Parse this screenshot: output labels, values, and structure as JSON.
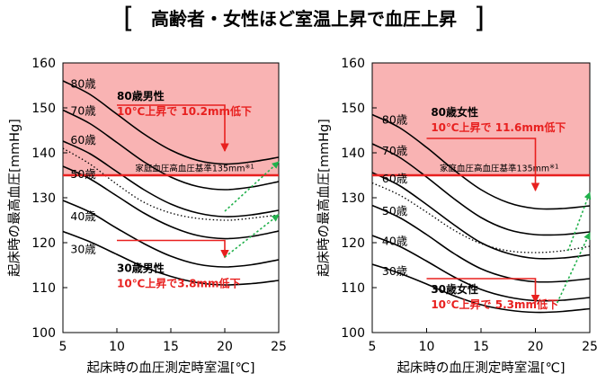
{
  "figure": {
    "bracket_left": "[",
    "title": "高齢者・女性ほど室温上昇で血圧上昇",
    "bracket_right": "]"
  },
  "chart_data": [
    {
      "type": "line",
      "xlabel": "起床時の血圧測定時室温[℃]",
      "ylabel": "起床時の最高血圧[mmHg]",
      "xlim": [
        5,
        25
      ],
      "ylim": [
        100,
        160
      ],
      "x_ticks": [
        "5",
        "10",
        "15",
        "20",
        "25"
      ],
      "y_ticks": [
        "100",
        "110",
        "120",
        "130",
        "140",
        "150",
        "160"
      ],
      "grid": false,
      "shaded_region": {
        "y_from": 135,
        "y_to": 160,
        "color": "#f9b3b3"
      },
      "threshold": {
        "y": 135,
        "label": "家庭血圧高血圧基準135mm",
        "note": "※1",
        "color": "#e8201f"
      },
      "series": [
        {
          "name": "80歳",
          "x": [
            5,
            7.5,
            10,
            12.5,
            15,
            17.5,
            20,
            22.5,
            25
          ],
          "values": [
            156,
            153,
            148.6,
            144.2,
            140.6,
            138.3,
            137.5,
            138,
            139
          ]
        },
        {
          "name": "70歳",
          "x": [
            5,
            7.5,
            10,
            12.5,
            15,
            17.5,
            20,
            22.5,
            25
          ],
          "values": [
            149.5,
            146.5,
            142.3,
            138,
            134.6,
            132.5,
            131.8,
            132.4,
            133.6
          ]
        },
        {
          "name": "60歳",
          "x": [
            5,
            7.5,
            10,
            12.5,
            15,
            17.5,
            20,
            22.5,
            25
          ],
          "values": [
            142.6,
            139.8,
            135.8,
            131.8,
            128.6,
            126.6,
            125.8,
            126.2,
            127.2
          ]
        },
        {
          "name": "50歳",
          "x": [
            5,
            7.5,
            10,
            12.5,
            15,
            17.5,
            20,
            22.5,
            25
          ],
          "values": [
            137,
            134.2,
            130.4,
            126.6,
            123.6,
            121.6,
            120.9,
            121.4,
            122.6
          ]
        },
        {
          "name": "40歳",
          "x": [
            5,
            7.5,
            10,
            12.5,
            15,
            17.5,
            20,
            22.5,
            25
          ],
          "values": [
            129.4,
            126.8,
            123.2,
            119.8,
            117,
            115.2,
            114.6,
            115.1,
            116.2
          ]
        },
        {
          "name": "30歳",
          "x": [
            5,
            7.5,
            10,
            12.5,
            15,
            17.5,
            20,
            22.5,
            25
          ],
          "values": [
            122.5,
            120.2,
            117.4,
            114.6,
            112.5,
            111.1,
            110.6,
            110.9,
            111.6
          ]
        },
        {
          "name": "",
          "style": "dotted",
          "x": [
            5,
            7.5,
            10,
            12.5,
            15,
            17.5,
            20,
            21.5,
            23,
            25
          ],
          "values": [
            141,
            137.5,
            133,
            129,
            126.6,
            125.4,
            125,
            125.2,
            125.6,
            126.2
          ]
        }
      ],
      "age_labels": [
        {
          "text": "80歳",
          "x": 5.7,
          "y": 155.3
        },
        {
          "text": "70歳",
          "x": 5.7,
          "y": 149.3
        },
        {
          "text": "60歳",
          "x": 5.7,
          "y": 142.8
        },
        {
          "text": "50歳",
          "x": 5.7,
          "y": 135.2
        },
        {
          "text": "40歳",
          "x": 5.7,
          "y": 125.8
        },
        {
          "text": "30歳",
          "x": 5.7,
          "y": 118.5
        }
      ],
      "annotations": [
        {
          "group": "80歳男性",
          "label": "80歳男性",
          "value_text": "10℃上昇で 10.2mm低下",
          "x": 10,
          "y": 151.8
        },
        {
          "group": "30歳男性",
          "label": "30歳男性",
          "value_text": "10℃上昇で3.8mm低下",
          "x": 10,
          "y": 113.5
        }
      ],
      "drops": [
        {
          "group": "80歳男性",
          "x_from": 10,
          "x_to": 20,
          "y_from": 150.6,
          "y_to": 140.4
        },
        {
          "group": "30歳男性",
          "x_from": 10,
          "x_to": 20,
          "y_from": 120.5,
          "y_to": 116.7
        }
      ],
      "rises": [
        {
          "points": [
            [
              20,
              116.8
            ],
            [
              25,
              126.2
            ]
          ]
        },
        {
          "points": [
            [
              20,
              127
            ],
            [
              25,
              138
            ]
          ]
        }
      ]
    },
    {
      "type": "line",
      "xlabel": "起床時の血圧測定時室温[℃]",
      "ylabel": "起床時の最高血圧[mmHg]",
      "xlim": [
        5,
        25
      ],
      "ylim": [
        100,
        160
      ],
      "x_ticks": [
        "5",
        "10",
        "15",
        "20",
        "25"
      ],
      "y_ticks": [
        "100",
        "110",
        "120",
        "130",
        "140",
        "150",
        "160"
      ],
      "grid": false,
      "shaded_region": {
        "y_from": 135,
        "y_to": 160,
        "color": "#f9b3b3"
      },
      "threshold": {
        "y": 135,
        "label": "家庭血圧高血圧基準135mm",
        "note": "※1",
        "color": "#e8201f"
      },
      "series": [
        {
          "name": "80歳",
          "x": [
            5,
            7.5,
            10,
            12.5,
            15,
            17.5,
            20,
            22.5,
            25
          ],
          "values": [
            148.5,
            145.6,
            141.2,
            136.2,
            131.8,
            128.9,
            127.6,
            127.6,
            128.2
          ]
        },
        {
          "name": "70歳",
          "x": [
            5,
            7.5,
            10,
            12.5,
            15,
            17.5,
            20,
            22.5,
            25
          ],
          "values": [
            142,
            139,
            134.6,
            129.8,
            125.6,
            122.9,
            121.8,
            121.8,
            122.4
          ]
        },
        {
          "name": "60歳",
          "x": [
            5,
            7.5,
            10,
            12.5,
            15,
            17.5,
            20,
            22.5,
            25
          ],
          "values": [
            135.6,
            132.7,
            128.5,
            124,
            120,
            117.6,
            116.5,
            116.6,
            117.3
          ]
        },
        {
          "name": "50歳",
          "x": [
            5,
            7.5,
            10,
            12.5,
            15,
            17.5,
            20,
            22.5,
            25
          ],
          "values": [
            128.3,
            125.6,
            121.8,
            117.6,
            114.2,
            112.2,
            111.3,
            111.4,
            112
          ]
        },
        {
          "name": "40歳",
          "x": [
            5,
            7.5,
            10,
            12.5,
            15,
            17.5,
            20,
            22.5,
            25
          ],
          "values": [
            121.6,
            119.2,
            115.9,
            112.4,
            109.6,
            107.9,
            107.1,
            107.2,
            107.8
          ]
        },
        {
          "name": "30歳",
          "x": [
            5,
            7.5,
            10,
            12.5,
            15,
            17.5,
            20,
            22.5,
            25
          ],
          "values": [
            115.2,
            113.2,
            110.8,
            108.2,
            106.2,
            105,
            104.5,
            104.7,
            105.3
          ]
        },
        {
          "name": "",
          "style": "dotted",
          "x": [
            5,
            7.5,
            10,
            12.5,
            15,
            17.5,
            20,
            22.5,
            25
          ],
          "values": [
            133.3,
            130.6,
            126.8,
            122.8,
            119.8,
            118.2,
            117.8,
            118.2,
            119.2
          ]
        }
      ],
      "age_labels": [
        {
          "text": "80歳",
          "x": 5.9,
          "y": 147.3
        },
        {
          "text": "70歳",
          "x": 5.9,
          "y": 140.4
        },
        {
          "text": "60歳",
          "x": 5.9,
          "y": 134.2
        },
        {
          "text": "50歳",
          "x": 5.9,
          "y": 127
        },
        {
          "text": "40歳",
          "x": 5.9,
          "y": 120.3
        },
        {
          "text": "30歳",
          "x": 5.9,
          "y": 113.6
        }
      ],
      "annotations": [
        {
          "group": "80歳女性",
          "label": "80歳女性",
          "value_text": "10℃上昇で 11.6mm低下",
          "x": 10.4,
          "y": 148.2
        },
        {
          "group": "30歳女性",
          "label": "30歳女性",
          "value_text": "10℃上昇で 5.3mm低下",
          "x": 10.4,
          "y": 108.8
        }
      ],
      "drops": [
        {
          "group": "80歳女性",
          "x_from": 10,
          "x_to": 20,
          "y_from": 143.2,
          "y_to": 131.6
        },
        {
          "group": "30歳女性",
          "x_from": 10,
          "x_to": 20,
          "y_from": 112,
          "y_to": 106.7
        }
      ],
      "rises": [
        {
          "points": [
            [
              22,
              106.6
            ],
            [
              25,
              122.2
            ]
          ]
        },
        {
          "points": [
            [
              23,
              118.2
            ],
            [
              25,
              131.2
            ]
          ]
        }
      ]
    }
  ],
  "colors": {
    "accent_red": "#e8201f",
    "green_arrow": "#22b14c",
    "shade": "#f9b3b3",
    "line": "#000000"
  }
}
